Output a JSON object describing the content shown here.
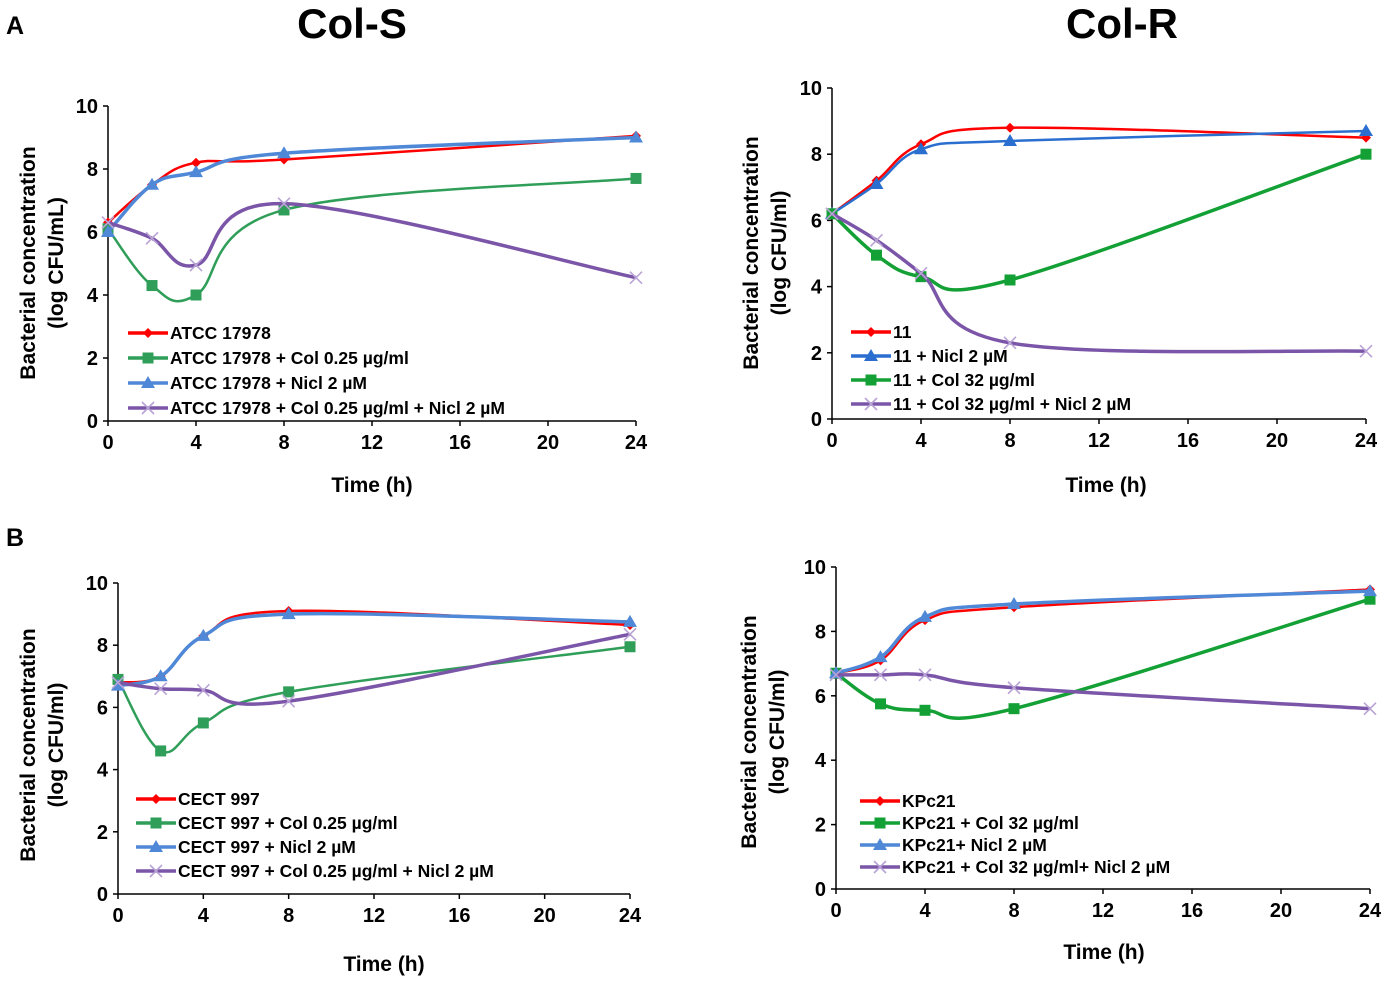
{
  "column_titles": [
    "Col-S",
    "Col-R"
  ],
  "panel_labels": [
    "A",
    "B"
  ],
  "colors": {
    "red": "#ff0000",
    "green": "#2f9e58",
    "blue": "#4f88d6",
    "purple": "#7b55a8"
  },
  "chart_data": [
    {
      "type": "line",
      "panel": "A",
      "column": "Col-S",
      "xlabel": "Time (h)",
      "ylabel": [
        "Bacterial concentration",
        "(log CFU/mL)"
      ],
      "xlim": [
        0,
        24
      ],
      "ylim": [
        0,
        10
      ],
      "xticks": [
        0,
        4,
        8,
        12,
        16,
        20,
        24
      ],
      "yticks": [
        0,
        2,
        4,
        6,
        8,
        10
      ],
      "grid": false,
      "legend": "bottom-left",
      "x": [
        0,
        2,
        4,
        8,
        24
      ],
      "series": [
        {
          "name": "ATCC 17978",
          "color": "#ff0000",
          "marker": "diamond",
          "values": [
            6.3,
            7.5,
            8.2,
            8.3,
            9.05
          ]
        },
        {
          "name": "ATCC 17978 + Col 0.25 µg/ml",
          "color": "#2f9e58",
          "marker": "square",
          "values": [
            6.1,
            4.3,
            4.0,
            6.7,
            7.7
          ]
        },
        {
          "name": "ATCC 17978 + Nicl 2 µM",
          "color": "#4f88d6",
          "marker": "triangle",
          "values": [
            6.0,
            7.5,
            7.9,
            8.5,
            9.0
          ]
        },
        {
          "name": "ATCC 17978 + Col 0.25 µg/ml + Nicl 2 µM",
          "color": "#7b55a8",
          "marker": "x",
          "values": [
            6.3,
            5.8,
            4.95,
            6.9,
            4.55
          ]
        }
      ]
    },
    {
      "type": "line",
      "panel": "A",
      "column": "Col-R",
      "xlabel": "Time (h)",
      "ylabel": [
        "Bacterial concentration",
        "(log CFU/ml)"
      ],
      "xlim": [
        0,
        24
      ],
      "ylim": [
        0,
        10
      ],
      "xticks": [
        0,
        4,
        8,
        12,
        16,
        20,
        24
      ],
      "yticks": [
        0,
        2,
        4,
        6,
        8,
        10
      ],
      "grid": false,
      "legend": "bottom-left",
      "x": [
        0,
        2,
        4,
        8,
        24
      ],
      "series": [
        {
          "name": "11",
          "color": "#ff0000",
          "marker": "diamond",
          "values": [
            6.2,
            7.2,
            8.3,
            8.8,
            8.5
          ]
        },
        {
          "name": "11 + Nicl 2 µM",
          "color": "#2a6fcf",
          "marker": "triangle",
          "values": [
            6.2,
            7.1,
            8.15,
            8.4,
            8.7
          ]
        },
        {
          "name": "11 + Col 32 µg/ml",
          "color": "#13a035",
          "marker": "square",
          "values": [
            6.2,
            4.95,
            4.3,
            4.2,
            8.0
          ]
        },
        {
          "name": "11 + Col 32 µg/ml + Nicl 2 µM",
          "color": "#7b55a8",
          "marker": "x",
          "values": [
            6.2,
            5.4,
            4.4,
            2.3,
            2.05
          ]
        }
      ]
    },
    {
      "type": "line",
      "panel": "B",
      "column": "Col-S",
      "xlabel": "Time (h)",
      "ylabel": [
        "Bacterial concentration",
        "(log CFU/ml)"
      ],
      "xlim": [
        0,
        24
      ],
      "ylim": [
        0,
        10
      ],
      "xticks": [
        0,
        4,
        8,
        12,
        16,
        20,
        24
      ],
      "yticks": [
        0,
        2,
        4,
        6,
        8,
        10
      ],
      "grid": false,
      "legend": "bottom-left",
      "x": [
        0,
        2,
        4,
        8,
        24
      ],
      "series": [
        {
          "name": "CECT 997",
          "color": "#ff0000",
          "marker": "diamond",
          "values": [
            6.8,
            7.0,
            8.3,
            9.1,
            8.65
          ]
        },
        {
          "name": "CECT 997 + Col 0.25 µg/ml",
          "color": "#2f9e58",
          "marker": "square",
          "values": [
            6.9,
            4.6,
            5.5,
            6.5,
            7.95
          ]
        },
        {
          "name": "CECT 997 + Nicl 2 µM",
          "color": "#4f88d6",
          "marker": "triangle",
          "values": [
            6.7,
            7.0,
            8.3,
            9.0,
            8.75
          ]
        },
        {
          "name": "CECT 997 + Col 0.25 µg/ml + Nicl 2 µM",
          "color": "#7b55a8",
          "marker": "x",
          "values": [
            6.8,
            6.6,
            6.55,
            6.2,
            8.35
          ]
        }
      ]
    },
    {
      "type": "line",
      "panel": "B",
      "column": "Col-R",
      "xlabel": "Time (h)",
      "ylabel": [
        "Bacterial concentration",
        "(log CFU/ml)"
      ],
      "xlim": [
        0,
        24
      ],
      "ylim": [
        0,
        10
      ],
      "xticks": [
        0,
        4,
        8,
        12,
        16,
        20,
        24
      ],
      "yticks": [
        0,
        2,
        4,
        6,
        8,
        10
      ],
      "grid": false,
      "legend": "bottom-left",
      "x": [
        0,
        2,
        4,
        8,
        24
      ],
      "series": [
        {
          "name": "KPc21",
          "color": "#ff0000",
          "marker": "diamond",
          "values": [
            6.7,
            7.1,
            8.35,
            8.75,
            9.3
          ]
        },
        {
          "name": "KPc21 + Col 32 µg/ml",
          "color": "#13a035",
          "marker": "square",
          "values": [
            6.7,
            5.75,
            5.55,
            5.6,
            9.0
          ]
        },
        {
          "name": "KPc21+ Nicl 2 µM",
          "color": "#4f88d6",
          "marker": "triangle",
          "values": [
            6.7,
            7.2,
            8.45,
            8.85,
            9.25
          ]
        },
        {
          "name": "KPc21 + Col 32 µg/ml+ Nicl 2 µM",
          "color": "#7b55a8",
          "marker": "x",
          "values": [
            6.65,
            6.65,
            6.65,
            6.25,
            5.6
          ]
        }
      ]
    }
  ]
}
